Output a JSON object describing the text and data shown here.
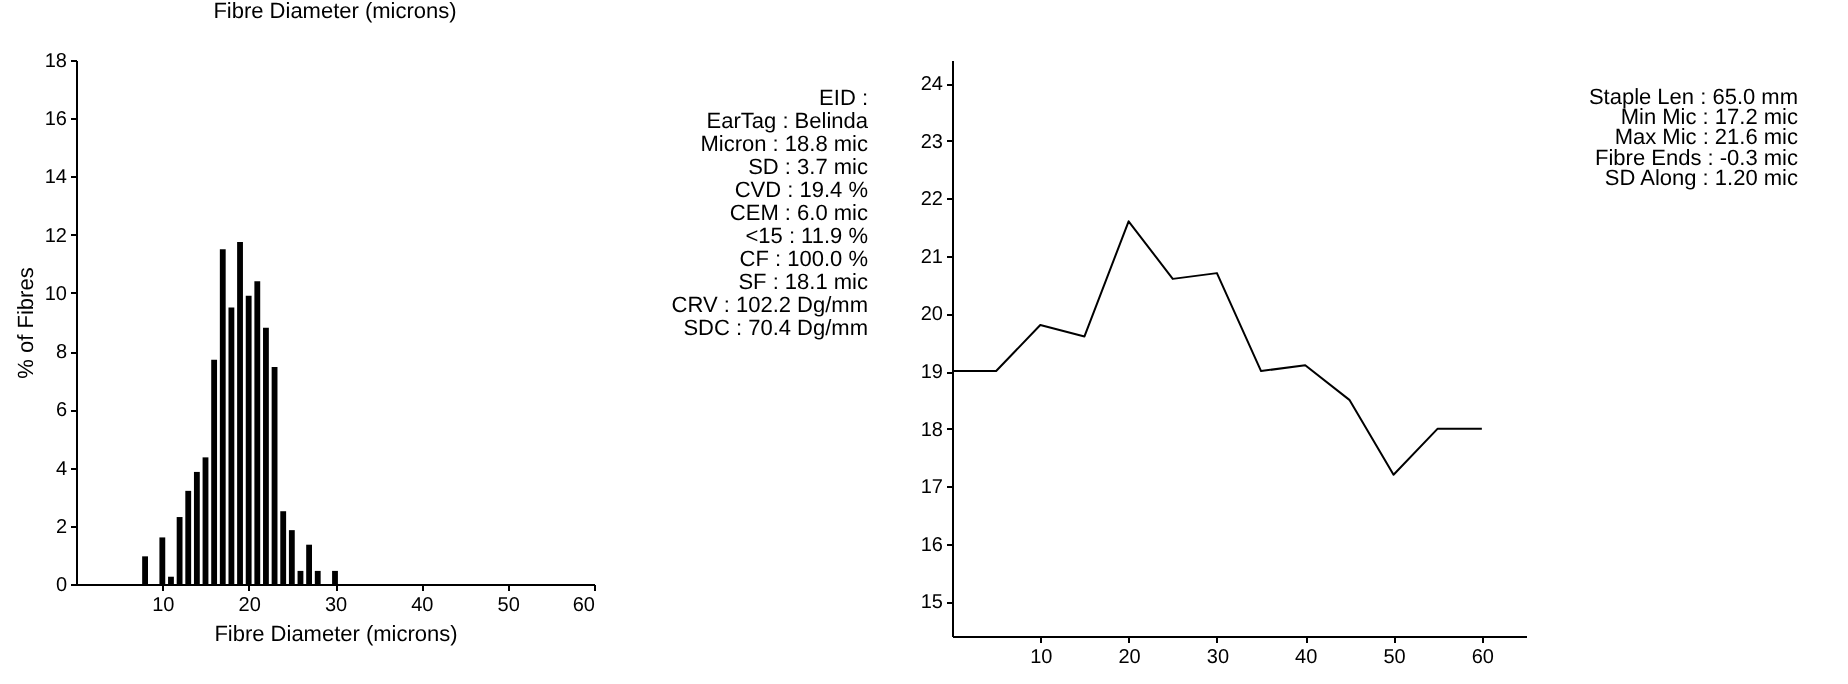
{
  "chart_data": [
    {
      "type": "histogram",
      "title": "Fibre Diameter (microns)",
      "xlabel": "Fibre Diameter (microns)",
      "ylabel": "% of Fibres",
      "bins": [
        7.5,
        8.5,
        9.5,
        10.5,
        11.5,
        12.5,
        13.5,
        14.5,
        15.5,
        16.5,
        17.5,
        18.5,
        19.5,
        20.5,
        21.5,
        22.5,
        23.5,
        24.5,
        25.5,
        26.5,
        27.5,
        28.5,
        29.5,
        30.5
      ],
      "values": [
        0.95,
        0,
        1.6,
        0.25,
        2.3,
        3.2,
        3.85,
        4.35,
        7.7,
        11.5,
        9.5,
        11.75,
        9.9,
        10.4,
        8.8,
        7.45,
        2.5,
        1.85,
        0.45,
        1.35,
        0.45,
        0,
        0.45
      ],
      "color": "#000000",
      "xlim": [
        0,
        60
      ],
      "xticks": [
        10,
        20,
        30,
        40,
        50,
        60
      ],
      "ylim": [
        0,
        18
      ],
      "yticks": [
        0,
        2,
        4,
        6,
        8,
        10,
        12,
        14,
        16,
        18
      ],
      "grid": false
    },
    {
      "type": "other",
      "annotations": [
        "EID :",
        "EarTag : Belinda",
        "Micron : 18.8 mic",
        "SD : 3.7 mic",
        "CVD : 19.4 %",
        "CEM : 6.0 mic",
        "<15 : 11.9 %",
        "CF : 100.0 %",
        "SF : 18.1 mic",
        "CRV : 102.2 Dg/mm",
        "SDC : 70.4 Dg/mm"
      ]
    },
    {
      "type": "line",
      "x": [
        0,
        5,
        10,
        15,
        20,
        25,
        30,
        35,
        40,
        45,
        50,
        55,
        60
      ],
      "values": [
        19.0,
        19.0,
        19.8,
        19.6,
        21.6,
        20.6,
        20.7,
        19.0,
        19.1,
        18.5,
        17.2,
        18.0,
        18.0
      ],
      "color": "#000000",
      "xlim": [
        0,
        65
      ],
      "xticks": [
        10,
        20,
        30,
        40,
        50,
        60
      ],
      "ylim": [
        14.4,
        24.4
      ],
      "yticks": [
        15,
        16,
        17,
        18,
        19,
        20,
        21,
        22,
        23,
        24
      ],
      "grid": false,
      "marker": "none",
      "line_style": "solid"
    },
    {
      "type": "other",
      "annotations": [
        "Staple Len : 65.0 mm",
        "Min Mic : 17.2 mic",
        "Max Mic : 21.6 mic",
        "Fibre Ends : -0.3 mic",
        "SD Along : 1.20 mic"
      ]
    }
  ]
}
